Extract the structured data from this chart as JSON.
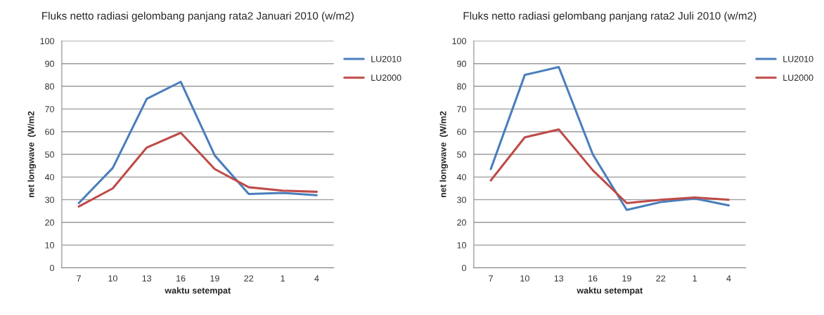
{
  "chart_data": [
    {
      "type": "line",
      "title": "Fluks netto radiasi gelombang panjang rata2 Januari 2010 (w/m2)",
      "xlabel": "waktu setempat",
      "ylabel": "net longwave  (W/m2",
      "categories": [
        "7",
        "10",
        "13",
        "16",
        "19",
        "22",
        "1",
        "4"
      ],
      "ylim": [
        0,
        100
      ],
      "yticks": [
        0,
        10,
        20,
        30,
        40,
        50,
        60,
        70,
        80,
        90,
        100
      ],
      "grid": "y",
      "legend": "top right",
      "marker": "none",
      "line_style": "solid",
      "series": [
        {
          "name": "LU2010",
          "color": "#4a7ebb",
          "values": [
            28.5,
            44,
            74.5,
            82,
            49.5,
            32.5,
            33,
            32
          ]
        },
        {
          "name": "LU2000",
          "color": "#be4b48",
          "values": [
            27,
            35,
            53,
            59.5,
            43.5,
            35.5,
            34,
            33.5
          ]
        }
      ]
    },
    {
      "type": "line",
      "title": "Fluks netto radiasi gelombang panjang rata2 Juli 2010 (w/m2)",
      "xlabel": "waktu setempat",
      "ylabel": "net longwave  (W/m2",
      "categories": [
        "7",
        "10",
        "13",
        "16",
        "19",
        "22",
        "1",
        "4"
      ],
      "ylim": [
        0,
        100
      ],
      "yticks": [
        0,
        10,
        20,
        30,
        40,
        50,
        60,
        70,
        80,
        90,
        100
      ],
      "grid": "y",
      "legend": "top right",
      "marker": "none",
      "line_style": "solid",
      "series": [
        {
          "name": "LU2010",
          "color": "#4a7ebb",
          "values": [
            43.5,
            85,
            88.5,
            50,
            25.5,
            29,
            30.5,
            27.5
          ]
        },
        {
          "name": "LU2000",
          "color": "#be4b48",
          "values": [
            38.5,
            57.5,
            61,
            43,
            28.5,
            30,
            31,
            30
          ]
        }
      ]
    }
  ]
}
